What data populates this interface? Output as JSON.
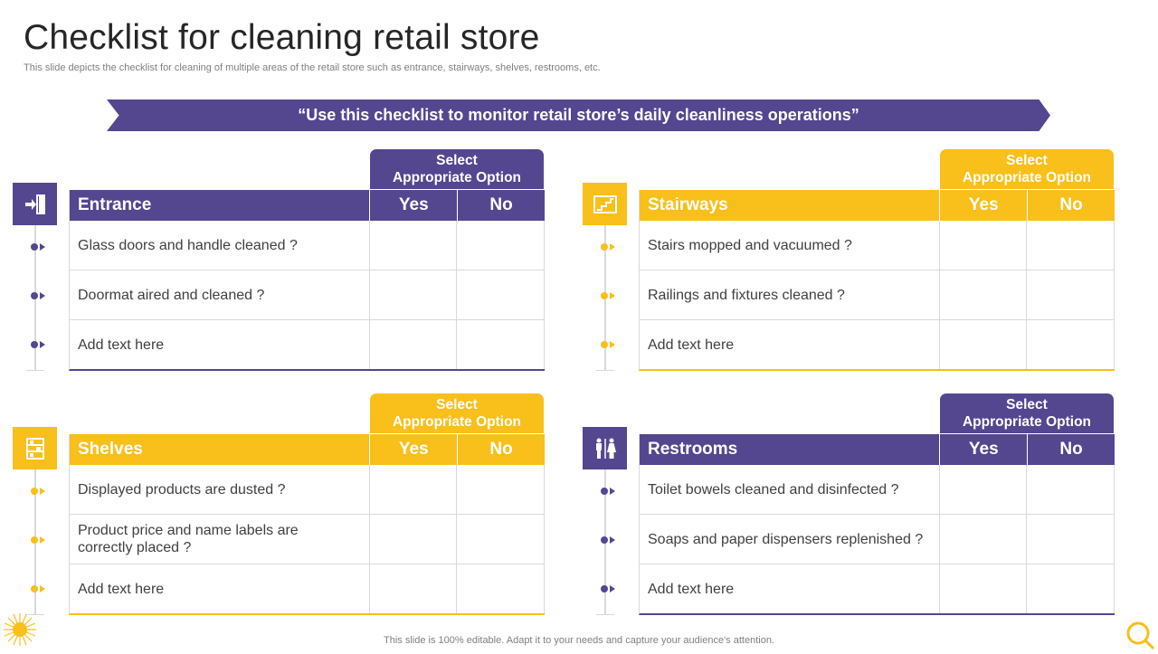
{
  "title": "Checklist for cleaning retail store",
  "subtitle": "This slide depicts the checklist for cleaning of multiple areas of the retail store such as entrance, stairways, shelves, restrooms, etc.",
  "banner": "“Use this checklist to monitor retail store’s daily cleanliness operations”",
  "colors": {
    "purple": "#554690",
    "yellow": "#F9BF1A"
  },
  "sections": [
    {
      "select_line1": "Select",
      "select_line2": "Appropriate Option",
      "heading": "Entrance",
      "yes": "Yes",
      "no": "No",
      "icon": "door-exit-icon",
      "color": "purple",
      "items": [
        "Glass doors and handle cleaned ?",
        "Doormat aired and cleaned ?",
        "Add text here"
      ]
    },
    {
      "select_line1": "Select",
      "select_line2": "Appropriate Option",
      "heading": "Stairways",
      "yes": "Yes",
      "no": "No",
      "icon": "stairs-icon",
      "color": "yellow",
      "items": [
        "Stairs mopped and vacuumed ?",
        "Railings and fixtures cleaned ?",
        "Add text here"
      ]
    },
    {
      "select_line1": "Select",
      "select_line2": "Appropriate Option",
      "heading": "Shelves",
      "yes": "Yes",
      "no": "No",
      "icon": "shelf-icon",
      "color": "yellow",
      "items": [
        "Displayed products are dusted ?",
        "Product price and name labels are correctly placed ?",
        "Add text here"
      ]
    },
    {
      "select_line1": "Select",
      "select_line2": "Appropriate Option",
      "heading": "Restrooms",
      "yes": "Yes",
      "no": "No",
      "icon": "restroom-icon",
      "color": "purple",
      "items": [
        "Toilet bowels cleaned and disinfected ?",
        "Soaps and paper dispensers replenished ?",
        "Add text here"
      ]
    }
  ],
  "footer": "This slide is 100% editable. Adapt it to your needs and capture your audience's attention."
}
